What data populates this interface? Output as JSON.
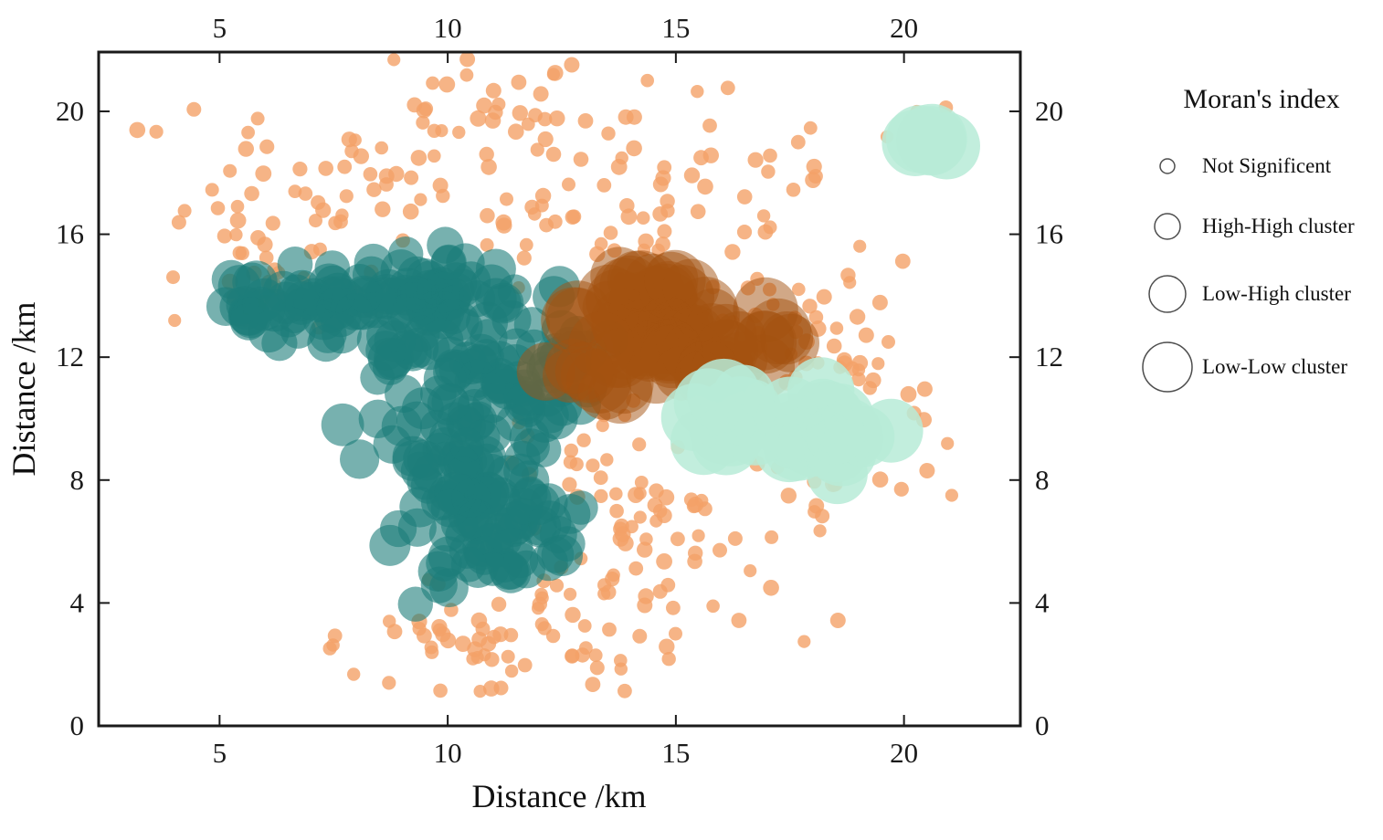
{
  "figure": {
    "background": "#ffffff"
  },
  "chart_data": {
    "type": "scatter",
    "title": "",
    "xlabel": "Distance /km",
    "ylabel": "Distance /km",
    "xlim": [
      2.35,
      22.55
    ],
    "ylim": [
      0,
      21.93
    ],
    "x_ticks": [
      5,
      10,
      15,
      20
    ],
    "y_ticks": [
      0,
      4,
      8,
      12,
      16,
      20
    ],
    "mirror_axes": true,
    "grid": false,
    "frame_color": "#1a1a1a",
    "legend": {
      "title": "Moran's index",
      "position": "right",
      "marker_style": "open-circle",
      "items": [
        {
          "label": "Not Significent",
          "marker_radius_px": 8
        },
        {
          "label": "High-High cluster",
          "marker_radius_px": 14
        },
        {
          "label": "Low-High cluster",
          "marker_radius_px": 20
        },
        {
          "label": "Low-Low cluster",
          "marker_radius_px": 27
        }
      ]
    },
    "series": [
      {
        "name": "Not Significent",
        "color": "#F4A168",
        "opacity": 0.8,
        "marker_radius_px": 8,
        "seed": 20,
        "clusters": [
          {
            "cx": 11.5,
            "cy": 18.6,
            "sx": 3.0,
            "sy": 1.3,
            "n": 70
          },
          {
            "cx": 7.0,
            "cy": 15.5,
            "sx": 1.5,
            "sy": 1.1,
            "n": 30
          },
          {
            "cx": 5.8,
            "cy": 13.6,
            "sx": 0.8,
            "sy": 0.8,
            "n": 10
          },
          {
            "cx": 14.2,
            "cy": 16.2,
            "sx": 2.0,
            "sy": 1.0,
            "n": 28
          },
          {
            "cx": 17.3,
            "cy": 13.6,
            "sx": 1.5,
            "sy": 1.4,
            "n": 38
          },
          {
            "cx": 17.9,
            "cy": 9.0,
            "sx": 1.3,
            "sy": 1.8,
            "n": 42
          },
          {
            "cx": 15.4,
            "cy": 5.8,
            "sx": 1.7,
            "sy": 1.4,
            "n": 42
          },
          {
            "cx": 13.0,
            "cy": 7.6,
            "sx": 0.9,
            "sy": 1.8,
            "n": 28
          },
          {
            "cx": 12.2,
            "cy": 3.0,
            "sx": 2.0,
            "sy": 0.9,
            "n": 50
          },
          {
            "cx": 9.6,
            "cy": 2.7,
            "sx": 1.1,
            "sy": 0.7,
            "n": 18
          },
          {
            "cx": 10.8,
            "cy": 20.2,
            "sx": 1.4,
            "sy": 0.8,
            "n": 14
          },
          {
            "cx": 13.6,
            "cy": 11.2,
            "sx": 0.7,
            "sy": 1.0,
            "n": 12
          },
          {
            "cx": 19.2,
            "cy": 11.6,
            "sx": 0.7,
            "sy": 1.1,
            "n": 12
          },
          {
            "cx": 4.9,
            "cy": 17.0,
            "sx": 0.35,
            "sy": 0.35,
            "n": 4
          },
          {
            "cx": 16.9,
            "cy": 17.6,
            "sx": 0.8,
            "sy": 0.7,
            "n": 10
          },
          {
            "cx": 20.3,
            "cy": 19.2,
            "sx": 0.5,
            "sy": 0.6,
            "n": 5
          },
          {
            "cx": 8.3,
            "cy": 17.9,
            "sx": 1.0,
            "sy": 0.8,
            "n": 15
          }
        ]
      },
      {
        "name": "High-High cluster",
        "color": "#1C7D79",
        "opacity": 0.6,
        "marker_radius_px": 21,
        "seed": 7,
        "clusters": [
          {
            "cx": 6.4,
            "cy": 13.7,
            "sx": 0.75,
            "sy": 0.5,
            "n": 38
          },
          {
            "cx": 8.2,
            "cy": 14.0,
            "sx": 0.6,
            "sy": 0.45,
            "n": 22
          },
          {
            "cx": 10.2,
            "cy": 13.8,
            "sx": 1.05,
            "sy": 0.65,
            "n": 55
          },
          {
            "cx": 9.9,
            "cy": 11.8,
            "sx": 0.85,
            "sy": 0.75,
            "n": 40
          },
          {
            "cx": 10.5,
            "cy": 9.5,
            "sx": 1.0,
            "sy": 1.0,
            "n": 55
          },
          {
            "cx": 10.9,
            "cy": 6.9,
            "sx": 0.95,
            "sy": 0.95,
            "n": 48
          },
          {
            "cx": 10.6,
            "cy": 5.1,
            "sx": 0.75,
            "sy": 0.5,
            "n": 18
          },
          {
            "cx": 12.2,
            "cy": 11.2,
            "sx": 0.45,
            "sy": 0.9,
            "n": 18
          },
          {
            "cx": 12.4,
            "cy": 6.6,
            "sx": 0.35,
            "sy": 0.7,
            "n": 10
          },
          {
            "cx": 12.9,
            "cy": 12.3,
            "sx": 0.3,
            "sy": 0.35,
            "n": 8
          }
        ]
      },
      {
        "name": "Low-High cluster",
        "color": "#A4520F",
        "opacity": 0.5,
        "marker_radius_px": 33,
        "seed": 13,
        "clusters": [
          {
            "cx": 14.2,
            "cy": 13.4,
            "sx": 0.8,
            "sy": 0.6,
            "n": 26
          },
          {
            "cx": 15.1,
            "cy": 12.2,
            "sx": 0.95,
            "sy": 0.65,
            "n": 28
          },
          {
            "cx": 13.6,
            "cy": 11.6,
            "sx": 0.5,
            "sy": 0.5,
            "n": 12
          },
          {
            "cx": 16.4,
            "cy": 11.9,
            "sx": 0.6,
            "sy": 0.45,
            "n": 12
          },
          {
            "cx": 14.6,
            "cy": 14.5,
            "sx": 0.5,
            "sy": 0.3,
            "n": 8
          }
        ]
      },
      {
        "name": "Low-Low cluster",
        "color": "#B7EBD7",
        "opacity": 0.85,
        "marker_radius_px": 36,
        "seed": 3,
        "clusters": [
          {
            "cx": 17.0,
            "cy": 9.7,
            "sx": 0.85,
            "sy": 0.4,
            "n": 20
          },
          {
            "cx": 18.6,
            "cy": 9.3,
            "sx": 0.55,
            "sy": 0.35,
            "n": 12
          },
          {
            "cx": 16.2,
            "cy": 10.3,
            "sx": 0.3,
            "sy": 0.25,
            "n": 6
          },
          {
            "cx": 20.7,
            "cy": 18.9,
            "sx": 0.18,
            "sy": 0.22,
            "n": 5
          }
        ]
      }
    ]
  }
}
